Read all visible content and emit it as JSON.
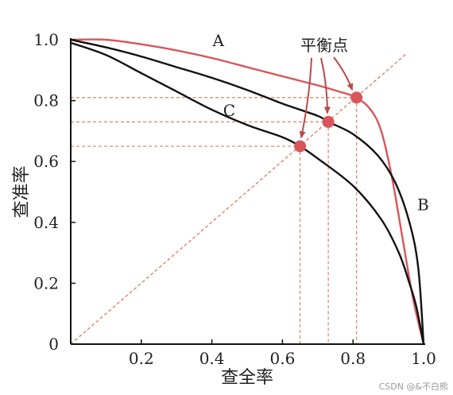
{
  "chart_data": {
    "type": "line",
    "xlabel": "查全率",
    "ylabel": "查准率",
    "xlim": [
      0,
      1.0
    ],
    "ylim": [
      0,
      1.0
    ],
    "x_ticks": [
      {
        "value": 0.2,
        "label": "0.2"
      },
      {
        "value": 0.4,
        "label": "0.4"
      },
      {
        "value": 0.6,
        "label": "0.6"
      },
      {
        "value": 0.8,
        "label": "0.8"
      },
      {
        "value": 1.0,
        "label": "1.0"
      }
    ],
    "y_ticks": [
      {
        "value": 0,
        "label": "0"
      },
      {
        "value": 0.2,
        "label": "0.2"
      },
      {
        "value": 0.4,
        "label": "0.4"
      },
      {
        "value": 0.6,
        "label": "0.6"
      },
      {
        "value": 0.8,
        "label": "0.8"
      },
      {
        "value": 1.0,
        "label": "1.0"
      }
    ],
    "grid": false,
    "diagonal": {
      "from": [
        0,
        0
      ],
      "to": [
        1,
        1
      ],
      "color": "#d9826a",
      "dashed": true
    },
    "series": [
      {
        "name": "A",
        "color": "#d8565a",
        "points": [
          [
            0,
            1.0
          ],
          [
            0.1,
            1.0
          ],
          [
            0.2,
            0.985
          ],
          [
            0.3,
            0.965
          ],
          [
            0.4,
            0.94
          ],
          [
            0.5,
            0.91
          ],
          [
            0.6,
            0.88
          ],
          [
            0.7,
            0.85
          ],
          [
            0.76,
            0.83
          ],
          [
            0.81,
            0.81
          ],
          [
            0.85,
            0.77
          ],
          [
            0.88,
            0.7
          ],
          [
            0.91,
            0.55
          ],
          [
            0.94,
            0.35
          ],
          [
            0.97,
            0.15
          ],
          [
            1.0,
            0.0
          ]
        ]
      },
      {
        "name": "B",
        "color": "#111111",
        "points": [
          [
            0,
            1.0
          ],
          [
            0.1,
            0.975
          ],
          [
            0.2,
            0.945
          ],
          [
            0.3,
            0.91
          ],
          [
            0.4,
            0.875
          ],
          [
            0.5,
            0.835
          ],
          [
            0.6,
            0.79
          ],
          [
            0.7,
            0.75
          ],
          [
            0.73,
            0.73
          ],
          [
            0.8,
            0.69
          ],
          [
            0.87,
            0.62
          ],
          [
            0.92,
            0.53
          ],
          [
            0.96,
            0.4
          ],
          [
            0.985,
            0.25
          ],
          [
            1.0,
            0.0
          ]
        ]
      },
      {
        "name": "C",
        "color": "#111111",
        "points": [
          [
            0,
            0.99
          ],
          [
            0.1,
            0.95
          ],
          [
            0.2,
            0.89
          ],
          [
            0.3,
            0.83
          ],
          [
            0.4,
            0.77
          ],
          [
            0.5,
            0.72
          ],
          [
            0.6,
            0.68
          ],
          [
            0.65,
            0.65
          ],
          [
            0.7,
            0.61
          ],
          [
            0.8,
            0.52
          ],
          [
            0.88,
            0.41
          ],
          [
            0.93,
            0.3
          ],
          [
            0.96,
            0.2
          ],
          [
            0.98,
            0.12
          ],
          [
            1.0,
            0.0
          ]
        ]
      }
    ],
    "curve_labels": [
      {
        "text": "A",
        "x": 0.42,
        "y": 0.99
      },
      {
        "text": "B",
        "x": 1.0,
        "y": 0.45
      },
      {
        "text": "C",
        "x": 0.45,
        "y": 0.76
      }
    ],
    "break_even_points": [
      [
        0.81,
        0.81
      ],
      [
        0.73,
        0.73
      ],
      [
        0.65,
        0.65
      ]
    ],
    "break_even_color": "#d8565a",
    "guide_color": "#d9826a",
    "annotation": {
      "text": "平衡点",
      "color": "#b94a4a"
    }
  },
  "watermark": "CSDN @&不白熊"
}
